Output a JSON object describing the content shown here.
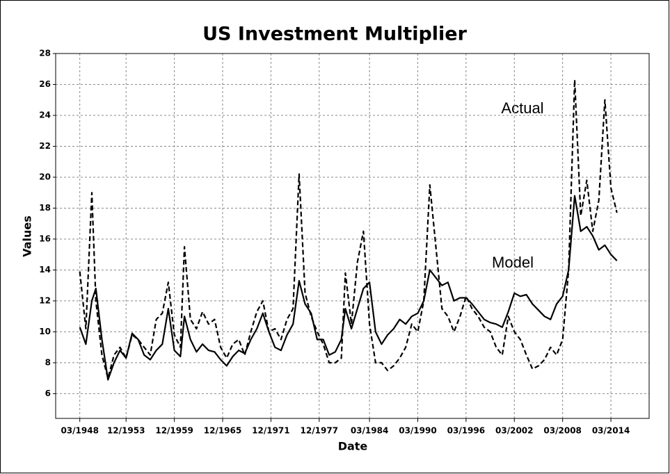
{
  "chart_data": {
    "type": "line",
    "title": "US Investment Multiplier",
    "xlabel": "Date",
    "ylabel": "Values",
    "annotations": [
      "Actual",
      "Model"
    ],
    "x": [
      "03/1948",
      "12/1948",
      "09/1949",
      "03/1950",
      "12/1950",
      "09/1951",
      "06/1952",
      "03/1953",
      "12/1953",
      "09/1954",
      "06/1955",
      "03/1956",
      "12/1956",
      "09/1957",
      "06/1958",
      "03/1959",
      "12/1959",
      "09/1960",
      "03/1961",
      "12/1961",
      "09/1962",
      "06/1963",
      "03/1964",
      "12/1964",
      "09/1965",
      "06/1966",
      "03/1967",
      "12/1967",
      "09/1968",
      "06/1969",
      "03/1970",
      "12/1970",
      "09/1971",
      "06/1972",
      "03/1973",
      "12/1973",
      "09/1974",
      "06/1975",
      "03/1976",
      "12/1976",
      "09/1977",
      "06/1978",
      "03/1979",
      "12/1979",
      "09/1980",
      "03/1981",
      "12/1981",
      "09/1982",
      "06/1983",
      "03/1984",
      "12/1984",
      "09/1985",
      "06/1986",
      "03/1987",
      "12/1987",
      "09/1988",
      "06/1989",
      "03/1990",
      "12/1990",
      "09/1991",
      "06/1992",
      "03/1993",
      "12/1993",
      "09/1994",
      "06/1995",
      "03/1996",
      "12/1996",
      "09/1997",
      "06/1998",
      "03/1999",
      "12/1999",
      "09/2000",
      "06/2001",
      "03/2002",
      "12/2002",
      "09/2003",
      "06/2004",
      "03/2005",
      "12/2005",
      "09/2006",
      "06/2007",
      "03/2008",
      "12/2008",
      "09/2009",
      "06/2010",
      "03/2011",
      "12/2011",
      "09/2012",
      "06/2013",
      "03/2014",
      "12/2014"
    ],
    "series": [
      {
        "name": "Actual",
        "color": "#000000",
        "dash": true,
        "values": [
          13.9,
          10.2,
          19.0,
          12.0,
          8.5,
          7.0,
          8.5,
          9.0,
          8.3,
          9.8,
          9.5,
          9.0,
          8.5,
          10.8,
          11.2,
          13.2,
          9.8,
          9.0,
          15.5,
          10.8,
          10.2,
          11.3,
          10.5,
          10.8,
          9.0,
          8.3,
          9.2,
          9.5,
          8.5,
          10.0,
          11.3,
          12.0,
          10.0,
          10.2,
          9.5,
          10.8,
          11.5,
          20.2,
          12.5,
          11.0,
          10.0,
          9.2,
          8.0,
          8.0,
          8.3,
          13.8,
          10.5,
          14.5,
          16.5,
          10.5,
          8.0,
          8.0,
          7.5,
          7.8,
          8.3,
          9.0,
          10.5,
          10.0,
          12.0,
          19.5,
          15.5,
          11.5,
          11.0,
          10.0,
          11.0,
          12.3,
          11.5,
          11.0,
          10.3,
          10.0,
          9.0,
          8.5,
          11.0,
          10.0,
          9.5,
          8.5,
          7.6,
          7.8,
          8.2,
          9.0,
          8.5,
          9.5,
          14.0,
          26.3,
          17.5,
          19.8,
          16.5,
          18.5,
          25.0,
          19.3,
          17.7
        ]
      },
      {
        "name": "Model",
        "color": "#000000",
        "dash": false,
        "values": [
          10.3,
          9.2,
          12.0,
          12.8,
          9.5,
          6.9,
          8.0,
          8.8,
          8.3,
          9.9,
          9.5,
          8.5,
          8.2,
          8.8,
          9.2,
          11.5,
          8.8,
          8.4,
          11.0,
          9.5,
          8.7,
          9.2,
          8.8,
          8.7,
          8.2,
          7.8,
          8.4,
          8.8,
          8.6,
          9.5,
          10.2,
          11.2,
          10.0,
          9.0,
          8.8,
          9.8,
          10.5,
          13.3,
          11.8,
          11.2,
          9.5,
          9.5,
          8.5,
          8.7,
          9.5,
          11.5,
          10.2,
          11.5,
          12.8,
          13.2,
          10.0,
          9.2,
          9.8,
          10.2,
          10.8,
          10.5,
          11.0,
          11.2,
          12.0,
          14.0,
          13.5,
          13.0,
          13.2,
          12.0,
          12.2,
          12.2,
          11.8,
          11.3,
          10.8,
          10.6,
          10.5,
          10.3,
          11.3,
          12.5,
          12.3,
          12.4,
          11.8,
          11.4,
          11.0,
          10.8,
          11.8,
          12.3,
          14.0,
          18.8,
          16.5,
          16.8,
          16.2,
          15.3,
          15.6,
          15.0,
          14.6
        ]
      }
    ],
    "xlim": [
      "03/1945",
      "12/2018"
    ],
    "xticks": [
      "03/1948",
      "12/1953",
      "12/1959",
      "12/1965",
      "12/1971",
      "12/1977",
      "03/1984",
      "03/1990",
      "03/1996",
      "03/2002",
      "03/2008",
      "03/2014"
    ],
    "ylim": [
      4.4,
      28
    ],
    "yticks": [
      6,
      8,
      10,
      12,
      14,
      16,
      18,
      20,
      22,
      24,
      26,
      28
    ],
    "grid": true
  }
}
